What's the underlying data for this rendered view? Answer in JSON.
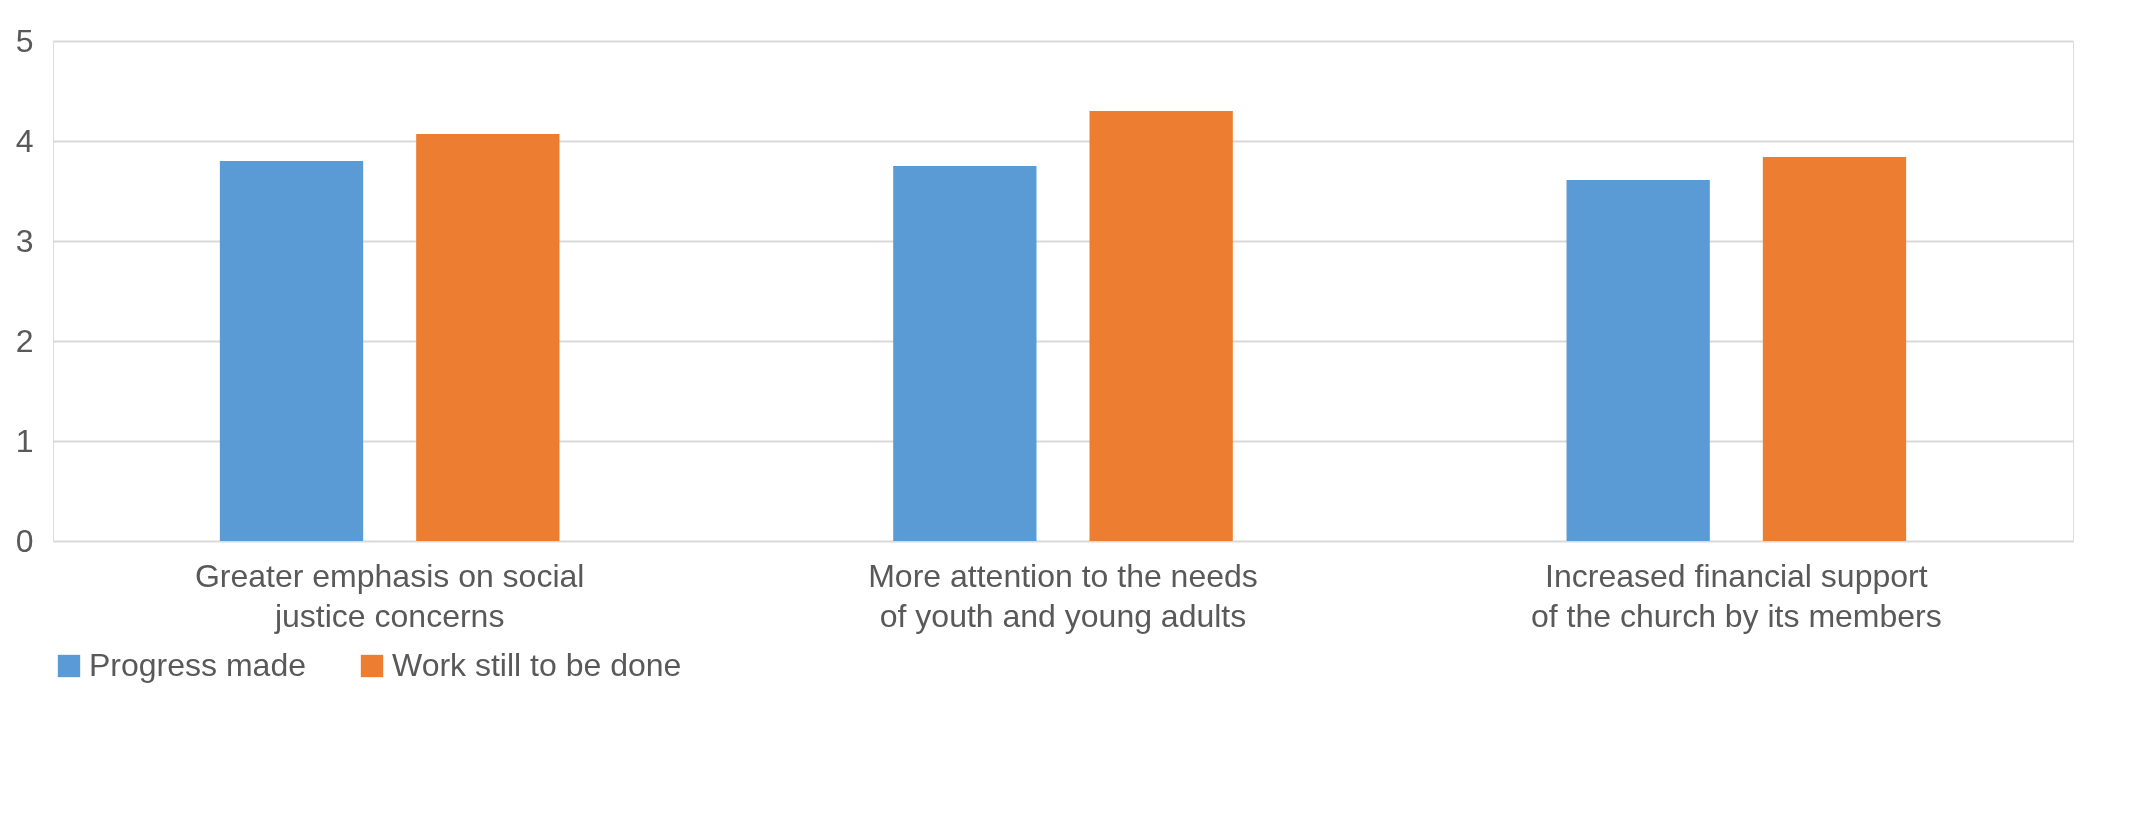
{
  "chart_data": {
    "type": "bar",
    "categories": [
      "Greater emphasis on social justice concerns",
      "More attention to the needs of youth and young adults",
      "Increased financial support of the church by its members"
    ],
    "series": [
      {
        "name": "Progress made",
        "color": "#5b9bd5",
        "values": [
          3.8,
          3.75,
          3.61
        ]
      },
      {
        "name": "Work still to be done",
        "color": "#ed7d31",
        "values": [
          4.07,
          4.3,
          3.84
        ]
      }
    ],
    "ylim": [
      0,
      5
    ],
    "yticks": [
      0,
      1,
      2,
      3,
      4,
      5
    ],
    "grid": "y",
    "legend": "bottom"
  }
}
